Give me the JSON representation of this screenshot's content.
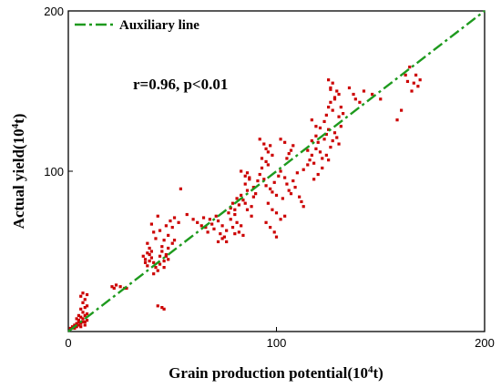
{
  "chart_data": {
    "type": "scatter",
    "xlabel": "Grain production potential(10",
    "xlabel_sup": "4",
    "xlabel_end": "t)",
    "ylabel": "Actual yield(10",
    "ylabel_sup": "4",
    "ylabel_end": "t)",
    "xlim": [
      0,
      200
    ],
    "ylim": [
      0,
      200
    ],
    "x_ticks": [
      "0",
      "100",
      "200"
    ],
    "y_ticks": [
      "100",
      "200"
    ],
    "grid": false,
    "legend_position": "top-left",
    "legend": {
      "label": "Auxiliary line"
    },
    "annotation": "r=0.96, p<0.01",
    "colors": {
      "points": "#cc0000",
      "line": "#1e9a1e"
    },
    "aux_line": {
      "x": [
        0,
        200
      ],
      "y": [
        0,
        200
      ]
    },
    "points": [
      [
        1,
        2
      ],
      [
        2,
        3
      ],
      [
        3,
        4
      ],
      [
        3,
        2
      ],
      [
        4,
        3
      ],
      [
        4,
        5
      ],
      [
        5,
        4
      ],
      [
        5,
        7
      ],
      [
        6,
        5
      ],
      [
        6,
        9
      ],
      [
        7,
        6
      ],
      [
        7,
        8
      ],
      [
        8,
        10
      ],
      [
        7,
        12
      ],
      [
        6,
        14
      ],
      [
        8,
        15
      ],
      [
        9,
        16
      ],
      [
        7,
        18
      ],
      [
        8,
        20
      ],
      [
        6,
        22
      ],
      [
        7,
        24
      ],
      [
        9,
        23
      ],
      [
        5,
        6
      ],
      [
        4,
        8
      ],
      [
        8,
        4
      ],
      [
        9,
        7
      ],
      [
        9,
        11
      ],
      [
        6,
        3
      ],
      [
        5,
        10
      ],
      [
        8,
        6
      ],
      [
        21,
        28
      ],
      [
        23,
        29
      ],
      [
        25,
        28
      ],
      [
        27,
        27
      ],
      [
        28,
        27
      ],
      [
        22,
        27
      ],
      [
        36,
        47
      ],
      [
        37,
        45
      ],
      [
        38,
        49
      ],
      [
        39,
        48
      ],
      [
        37,
        43
      ],
      [
        38,
        41
      ],
      [
        39,
        44
      ],
      [
        40,
        46
      ],
      [
        41,
        43
      ],
      [
        42,
        40
      ],
      [
        40,
        50
      ],
      [
        39,
        52
      ],
      [
        38,
        55
      ],
      [
        42,
        58
      ],
      [
        41,
        62
      ],
      [
        40,
        67
      ],
      [
        43,
        72
      ],
      [
        44,
        47
      ],
      [
        45,
        50
      ],
      [
        46,
        44
      ],
      [
        47,
        48
      ],
      [
        48,
        45
      ],
      [
        45,
        53
      ],
      [
        46,
        57
      ],
      [
        48,
        60
      ],
      [
        44,
        63
      ],
      [
        47,
        66
      ],
      [
        50,
        65
      ],
      [
        49,
        69
      ],
      [
        51,
        71
      ],
      [
        53,
        68
      ],
      [
        43,
        16
      ],
      [
        45,
        15
      ],
      [
        46,
        14
      ],
      [
        47,
        47
      ],
      [
        41,
        36
      ],
      [
        43,
        38
      ],
      [
        44,
        42
      ],
      [
        46,
        40
      ],
      [
        48,
        52
      ],
      [
        50,
        55
      ],
      [
        51,
        57
      ],
      [
        54,
        89
      ],
      [
        57,
        73
      ],
      [
        60,
        70
      ],
      [
        62,
        68
      ],
      [
        64,
        66
      ],
      [
        65,
        71
      ],
      [
        66,
        65
      ],
      [
        67,
        62
      ],
      [
        68,
        70
      ],
      [
        69,
        67
      ],
      [
        70,
        64
      ],
      [
        71,
        72
      ],
      [
        72,
        69
      ],
      [
        73,
        61
      ],
      [
        74,
        66
      ],
      [
        75,
        59
      ],
      [
        76,
        63
      ],
      [
        72,
        56
      ],
      [
        74,
        58
      ],
      [
        76,
        56
      ],
      [
        77,
        74
      ],
      [
        78,
        77
      ],
      [
        79,
        80
      ],
      [
        80,
        76
      ],
      [
        81,
        83
      ],
      [
        82,
        79
      ],
      [
        83,
        85
      ],
      [
        84,
        82
      ],
      [
        85,
        92
      ],
      [
        86,
        88
      ],
      [
        87,
        95
      ],
      [
        83,
        100
      ],
      [
        85,
        97
      ],
      [
        86,
        99
      ],
      [
        87,
        96
      ],
      [
        79,
        65
      ],
      [
        80,
        61
      ],
      [
        81,
        68
      ],
      [
        82,
        62
      ],
      [
        83,
        66
      ],
      [
        84,
        60
      ],
      [
        78,
        70
      ],
      [
        80,
        73
      ],
      [
        85,
        80
      ],
      [
        86,
        76
      ],
      [
        88,
        72
      ],
      [
        89,
        84
      ],
      [
        88,
        78
      ],
      [
        89,
        90
      ],
      [
        90,
        86
      ],
      [
        91,
        94
      ],
      [
        92,
        98
      ],
      [
        93,
        102
      ],
      [
        94,
        95
      ],
      [
        95,
        91
      ],
      [
        96,
        104
      ],
      [
        97,
        89
      ],
      [
        98,
        87
      ],
      [
        99,
        93
      ],
      [
        100,
        85
      ],
      [
        101,
        97
      ],
      [
        102,
        100
      ],
      [
        103,
        83
      ],
      [
        104,
        96
      ],
      [
        105,
        92
      ],
      [
        106,
        88
      ],
      [
        107,
        86
      ],
      [
        108,
        94
      ],
      [
        109,
        90
      ],
      [
        110,
        99
      ],
      [
        111,
        84
      ],
      [
        112,
        81
      ],
      [
        113,
        78
      ],
      [
        96,
        80
      ],
      [
        98,
        76
      ],
      [
        100,
        74
      ],
      [
        102,
        70
      ],
      [
        104,
        72
      ],
      [
        95,
        68
      ],
      [
        97,
        65
      ],
      [
        99,
        62
      ],
      [
        100,
        59
      ],
      [
        92,
        120
      ],
      [
        94,
        117
      ],
      [
        95,
        114
      ],
      [
        96,
        112
      ],
      [
        97,
        116
      ],
      [
        98,
        110
      ],
      [
        93,
        108
      ],
      [
        95,
        106
      ],
      [
        105,
        108
      ],
      [
        106,
        111
      ],
      [
        107,
        113
      ],
      [
        108,
        116
      ],
      [
        102,
        120
      ],
      [
        104,
        118
      ],
      [
        113,
        101
      ],
      [
        115,
        104
      ],
      [
        116,
        107
      ],
      [
        117,
        110
      ],
      [
        118,
        105
      ],
      [
        119,
        114
      ],
      [
        120,
        118
      ],
      [
        121,
        112
      ],
      [
        122,
        108
      ],
      [
        123,
        120
      ],
      [
        124,
        123
      ],
      [
        125,
        126
      ],
      [
        126,
        115
      ],
      [
        127,
        119
      ],
      [
        128,
        124
      ],
      [
        129,
        121
      ],
      [
        130,
        117
      ],
      [
        115,
        113
      ],
      [
        117,
        119
      ],
      [
        119,
        122
      ],
      [
        121,
        127
      ],
      [
        123,
        131
      ],
      [
        124,
        135
      ],
      [
        125,
        140
      ],
      [
        126,
        143
      ],
      [
        127,
        138
      ],
      [
        128,
        145
      ],
      [
        129,
        150
      ],
      [
        130,
        134
      ],
      [
        131,
        128
      ],
      [
        132,
        136
      ],
      [
        126,
        152
      ],
      [
        127,
        155
      ],
      [
        128,
        146
      ],
      [
        124,
        110
      ],
      [
        125,
        107
      ],
      [
        122,
        102
      ],
      [
        120,
        98
      ],
      [
        118,
        95
      ],
      [
        117,
        132
      ],
      [
        119,
        128
      ],
      [
        130,
        148
      ],
      [
        131,
        140
      ],
      [
        125,
        157
      ],
      [
        126,
        151
      ],
      [
        135,
        152
      ],
      [
        137,
        148
      ],
      [
        138,
        145
      ],
      [
        140,
        143
      ],
      [
        142,
        150
      ],
      [
        146,
        148
      ],
      [
        150,
        145
      ],
      [
        158,
        132
      ],
      [
        160,
        138
      ],
      [
        162,
        160
      ],
      [
        163,
        156
      ],
      [
        164,
        165
      ],
      [
        165,
        150
      ],
      [
        166,
        155
      ],
      [
        167,
        160
      ],
      [
        168,
        153
      ],
      [
        169,
        157
      ]
    ]
  }
}
